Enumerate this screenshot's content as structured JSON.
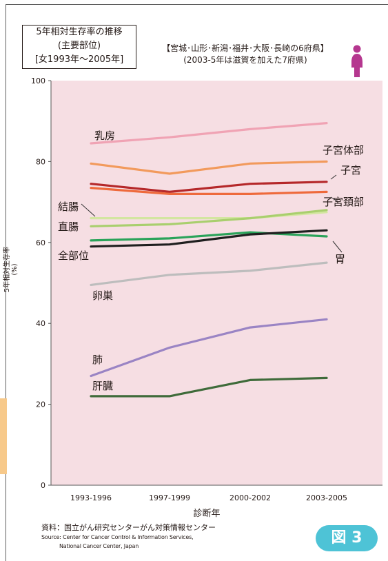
{
  "title_box": {
    "line1": "5年相対生存率の推移",
    "line2": "(主要部位)",
    "line3": "[女1993年〜2005年]"
  },
  "region_note": {
    "line1": "【宮城･山形･新潟･福井･大阪･長崎の6府県】",
    "line2": "(2003-5年は滋賀を加えた7府県)"
  },
  "source": {
    "jp": "資料：国立がん研究センターがん対策情報センター",
    "en_line1": "Source: Center for Cancer Control & Information Services,",
    "en_line2": "National Cancer Center, Japan"
  },
  "figure_badge": "図 3",
  "colors": {
    "plot_background": "#f6dee3",
    "icon": "#b5378f",
    "badge": "#4ec3d6"
  },
  "icon": "female-figure-icon",
  "chart_data": {
    "type": "line",
    "title": "5年相対生存率の推移",
    "xlabel": "診断年",
    "ylabel": "5年相対生存率(%)",
    "categories": [
      "1993-1996",
      "1997-1999",
      "2000-2002",
      "2003-2005"
    ],
    "ylim": [
      0,
      100
    ],
    "yticks": [
      0,
      20,
      40,
      60,
      80,
      100
    ],
    "grid": false,
    "series": [
      {
        "name": "乳房",
        "color": "#f0a3b4",
        "values": [
          84.5,
          86,
          88,
          89.5
        ]
      },
      {
        "name": "子宮体部",
        "color": "#f29a5c",
        "values": [
          79.5,
          77,
          79.5,
          80
        ]
      },
      {
        "name": "子宮",
        "color": "#b5282a",
        "values": [
          74.5,
          72.5,
          74.5,
          75
        ]
      },
      {
        "name": "子宮頚部",
        "color": "#ee6a3c",
        "values": [
          73.5,
          72,
          72,
          72.5
        ]
      },
      {
        "name": "結腸",
        "color": "#d3e6a0",
        "values": [
          66,
          66,
          66,
          67.5
        ]
      },
      {
        "name": "直腸",
        "color": "#a9cf6e",
        "values": [
          64,
          64.5,
          66,
          68
        ]
      },
      {
        "name": "胃",
        "color": "#2aa35a",
        "values": [
          60.5,
          61,
          62.5,
          61.5
        ]
      },
      {
        "name": "全部位",
        "color": "#1f1f1f",
        "values": [
          59,
          59.5,
          62,
          63
        ]
      },
      {
        "name": "卵巣",
        "color": "#bdbdbd",
        "values": [
          49.5,
          52,
          53,
          55
        ]
      },
      {
        "name": "肺",
        "color": "#9a84c4",
        "values": [
          27,
          34,
          39,
          41
        ]
      },
      {
        "name": "肝臓",
        "color": "#3f6b3a",
        "values": [
          22,
          22,
          26,
          26.5
        ]
      }
    ]
  }
}
